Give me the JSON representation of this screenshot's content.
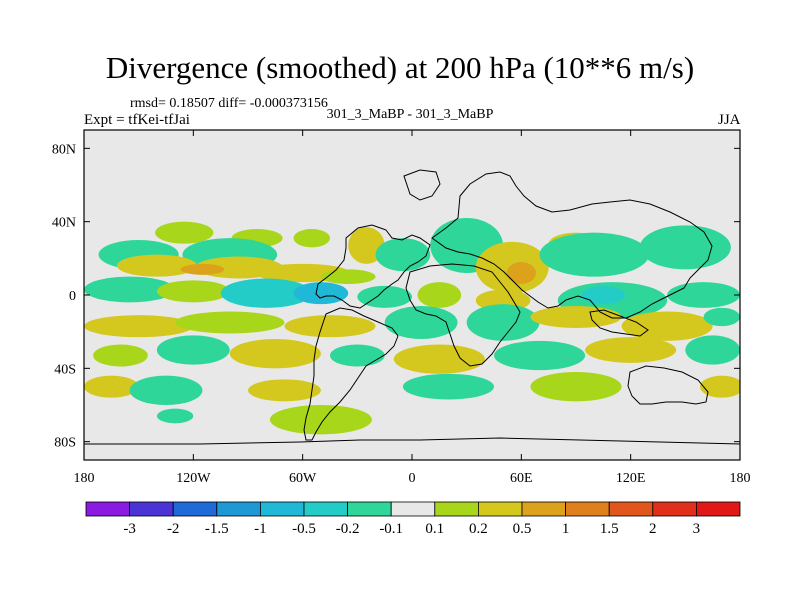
{
  "chart_data": {
    "type": "heatmap",
    "title": "Divergence (smoothed) at 200 hPa (10**6 m/s)",
    "stats_line": "rmsd= 0.18507 diff= -0.000373156",
    "left_subtitle": "Expt = tfKei-tfJai",
    "center_subtitle": "301_3_MaBP - 301_3_MaBP",
    "right_subtitle": "JJA",
    "x_ticks": [
      {
        "value": -180,
        "label": "180"
      },
      {
        "value": -120,
        "label": "120W"
      },
      {
        "value": -60,
        "label": "60W"
      },
      {
        "value": 0,
        "label": "0"
      },
      {
        "value": 60,
        "label": "60E"
      },
      {
        "value": 120,
        "label": "120E"
      },
      {
        "value": 180,
        "label": "180"
      }
    ],
    "y_ticks": [
      {
        "value": 80,
        "label": "80N"
      },
      {
        "value": 40,
        "label": "40N"
      },
      {
        "value": 0,
        "label": "0"
      },
      {
        "value": -40,
        "label": "40S"
      },
      {
        "value": -80,
        "label": "80S"
      }
    ],
    "xlim": [
      -180,
      180
    ],
    "ylim": [
      -90,
      90
    ],
    "colorbar": {
      "labels": [
        "-3",
        "-2",
        "-1.5",
        "-1",
        "-0.5",
        "-0.2",
        "-0.1",
        "0.1",
        "0.2",
        "0.5",
        "1",
        "1.5",
        "2",
        "3"
      ],
      "colors": [
        "#8a1be0",
        "#4a34d6",
        "#1f69d9",
        "#1f98d6",
        "#1fb8d6",
        "#24ccc8",
        "#2ed69a",
        "#e8e8e8",
        "#a8d61a",
        "#d4c81e",
        "#dca21c",
        "#e0801c",
        "#e0561c",
        "#e0301c",
        "#e01818"
      ]
    },
    "blobs": [
      {
        "lon": -125,
        "lat": 34,
        "rx": 16,
        "ry": 6,
        "value": 0.15
      },
      {
        "lon": -85,
        "lat": 31,
        "rx": 14,
        "ry": 5,
        "value": 0.15
      },
      {
        "lon": -55,
        "lat": 31,
        "rx": 10,
        "ry": 5,
        "value": 0.15
      },
      {
        "lon": -150,
        "lat": 22,
        "rx": 22,
        "ry": 8,
        "value": -0.15
      },
      {
        "lon": -100,
        "lat": 22,
        "rx": 26,
        "ry": 9,
        "value": -0.15
      },
      {
        "lon": -140,
        "lat": 16,
        "rx": 22,
        "ry": 6,
        "value": 0.35
      },
      {
        "lon": -95,
        "lat": 15,
        "rx": 24,
        "ry": 6,
        "value": 0.35
      },
      {
        "lon": -60,
        "lat": 12,
        "rx": 26,
        "ry": 5,
        "value": 0.35
      },
      {
        "lon": -115,
        "lat": 14,
        "rx": 12,
        "ry": 3,
        "value": 0.7
      },
      {
        "lon": -35,
        "lat": 10,
        "rx": 15,
        "ry": 4,
        "value": 0.15
      },
      {
        "lon": -25,
        "lat": 27,
        "rx": 10,
        "ry": 10,
        "value": 0.35
      },
      {
        "lon": -5,
        "lat": 22,
        "rx": 15,
        "ry": 9,
        "value": -0.15
      },
      {
        "lon": 30,
        "lat": 27,
        "rx": 20,
        "ry": 15,
        "value": -0.15
      },
      {
        "lon": 55,
        "lat": 15,
        "rx": 20,
        "ry": 14,
        "value": 0.35
      },
      {
        "lon": 60,
        "lat": 12,
        "rx": 8,
        "ry": 6,
        "value": 0.7
      },
      {
        "lon": 90,
        "lat": 28,
        "rx": 15,
        "ry": 6,
        "value": 0.35
      },
      {
        "lon": 100,
        "lat": 22,
        "rx": 30,
        "ry": 12,
        "value": -0.15
      },
      {
        "lon": 150,
        "lat": 26,
        "rx": 25,
        "ry": 12,
        "value": -0.15
      },
      {
        "lon": -155,
        "lat": 3,
        "rx": 25,
        "ry": 7,
        "value": -0.15
      },
      {
        "lon": -120,
        "lat": 2,
        "rx": 20,
        "ry": 6,
        "value": 0.15
      },
      {
        "lon": -80,
        "lat": 1,
        "rx": 25,
        "ry": 8,
        "value": -0.35
      },
      {
        "lon": -50,
        "lat": 1,
        "rx": 15,
        "ry": 6,
        "value": -0.7
      },
      {
        "lon": -15,
        "lat": -1,
        "rx": 15,
        "ry": 6,
        "value": -0.15
      },
      {
        "lon": 15,
        "lat": 0,
        "rx": 12,
        "ry": 7,
        "value": 0.15
      },
      {
        "lon": 50,
        "lat": -3,
        "rx": 15,
        "ry": 6,
        "value": 0.35
      },
      {
        "lon": 110,
        "lat": -3,
        "rx": 30,
        "ry": 10,
        "value": -0.15
      },
      {
        "lon": 105,
        "lat": 0,
        "rx": 12,
        "ry": 5,
        "value": -0.35
      },
      {
        "lon": 160,
        "lat": 0,
        "rx": 20,
        "ry": 7,
        "value": -0.15
      },
      {
        "lon": -150,
        "lat": -17,
        "rx": 30,
        "ry": 6,
        "value": 0.35
      },
      {
        "lon": -100,
        "lat": -15,
        "rx": 30,
        "ry": 6,
        "value": 0.15
      },
      {
        "lon": -45,
        "lat": -17,
        "rx": 25,
        "ry": 6,
        "value": 0.35
      },
      {
        "lon": 5,
        "lat": -15,
        "rx": 20,
        "ry": 9,
        "value": -0.15
      },
      {
        "lon": 50,
        "lat": -15,
        "rx": 20,
        "ry": 10,
        "value": -0.15
      },
      {
        "lon": 90,
        "lat": -12,
        "rx": 25,
        "ry": 6,
        "value": 0.35
      },
      {
        "lon": 140,
        "lat": -17,
        "rx": 25,
        "ry": 8,
        "value": 0.35
      },
      {
        "lon": 170,
        "lat": -12,
        "rx": 10,
        "ry": 5,
        "value": -0.15
      },
      {
        "lon": -160,
        "lat": -33,
        "rx": 15,
        "ry": 6,
        "value": 0.15
      },
      {
        "lon": -120,
        "lat": -30,
        "rx": 20,
        "ry": 8,
        "value": -0.15
      },
      {
        "lon": -75,
        "lat": -32,
        "rx": 25,
        "ry": 8,
        "value": 0.35
      },
      {
        "lon": -30,
        "lat": -33,
        "rx": 15,
        "ry": 6,
        "value": -0.15
      },
      {
        "lon": 15,
        "lat": -35,
        "rx": 25,
        "ry": 8,
        "value": 0.35
      },
      {
        "lon": 70,
        "lat": -33,
        "rx": 25,
        "ry": 8,
        "value": -0.15
      },
      {
        "lon": 120,
        "lat": -30,
        "rx": 25,
        "ry": 7,
        "value": 0.35
      },
      {
        "lon": 165,
        "lat": -30,
        "rx": 15,
        "ry": 8,
        "value": -0.15
      },
      {
        "lon": -165,
        "lat": -50,
        "rx": 15,
        "ry": 6,
        "value": 0.35
      },
      {
        "lon": -135,
        "lat": -52,
        "rx": 20,
        "ry": 8,
        "value": -0.15
      },
      {
        "lon": -70,
        "lat": -52,
        "rx": 20,
        "ry": 6,
        "value": 0.35
      },
      {
        "lon": 20,
        "lat": -50,
        "rx": 25,
        "ry": 7,
        "value": -0.15
      },
      {
        "lon": 90,
        "lat": -50,
        "rx": 25,
        "ry": 8,
        "value": 0.15
      },
      {
        "lon": 170,
        "lat": -50,
        "rx": 12,
        "ry": 6,
        "value": 0.35
      },
      {
        "lon": -50,
        "lat": -68,
        "rx": 28,
        "ry": 8,
        "value": 0.15
      },
      {
        "lon": -130,
        "lat": -66,
        "rx": 10,
        "ry": 4,
        "value": -0.15
      }
    ]
  }
}
